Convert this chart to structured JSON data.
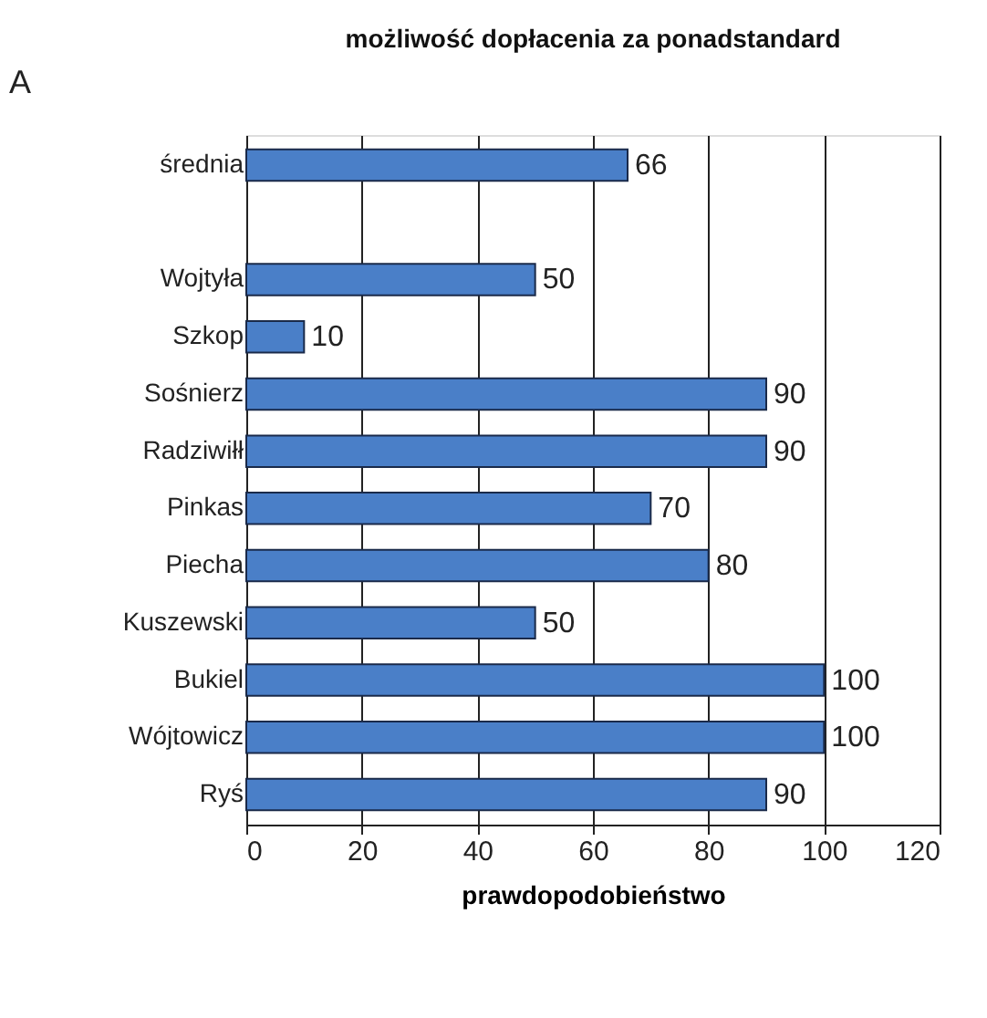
{
  "chart_data": {
    "type": "bar",
    "orientation": "horizontal",
    "title": "możliwość dopłacenia za ponadstandard",
    "xlabel": "prawdopodobieństwo",
    "annotations": [
      "A"
    ],
    "categories": [
      "średnia",
      null,
      "Wojtyła",
      "Szkop",
      "Sośnierz",
      "Radziwiłł",
      "Pinkas",
      "Piecha",
      "Kuszewski",
      "Bukiel",
      "Wójtowicz",
      "Ryś"
    ],
    "series": [
      {
        "color": "#4a7fc8",
        "values": [
          66,
          null,
          50,
          10,
          90,
          90,
          70,
          80,
          50,
          100,
          100,
          90
        ]
      }
    ],
    "xlim": [
      0,
      120
    ],
    "xticks": [
      0,
      20,
      40,
      60,
      80,
      100,
      120
    ],
    "grid": "x",
    "data_labels": true
  }
}
